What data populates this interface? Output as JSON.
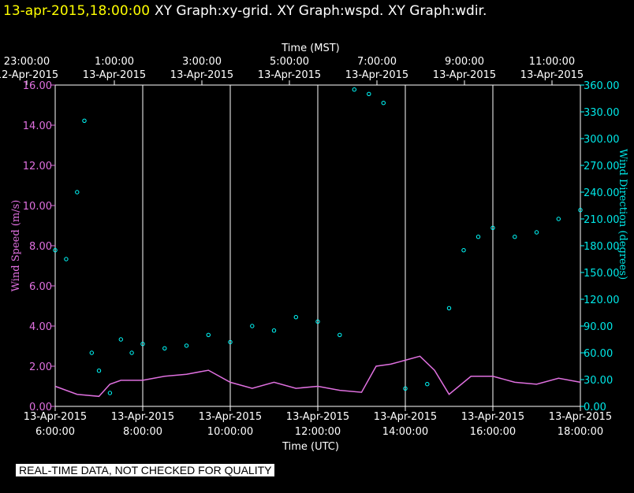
{
  "header": {
    "date": "13-apr-2015,18:00:00",
    "graphs": "XY Graph:xy-grid.  XY Graph:wspd.  XY Graph:wdir."
  },
  "footer": {
    "disclaimer": "REAL-TIME DATA, NOT CHECKED FOR QUALITY"
  },
  "colors": {
    "speed": "#e070e0",
    "direction": "#00ffff",
    "grid": "#ffffff",
    "background": "#000000",
    "title_date": "#ffff00"
  },
  "chart_data": {
    "type": "scatter",
    "top_axis": {
      "title": "Time (MST)",
      "ticks": [
        {
          "time": "23:00:00",
          "date": "12-Apr-2015"
        },
        {
          "time": "1:00:00",
          "date": "13-Apr-2015"
        },
        {
          "time": "3:00:00",
          "date": "13-Apr-2015"
        },
        {
          "time": "5:00:00",
          "date": "13-Apr-2015"
        },
        {
          "time": "7:00:00",
          "date": "13-Apr-2015"
        },
        {
          "time": "9:00:00",
          "date": "13-Apr-2015"
        },
        {
          "time": "11:00:00",
          "date": "13-Apr-2015"
        }
      ]
    },
    "bottom_axis": {
      "title": "Time (UTC)",
      "range": [
        "2015-04-13T06:00",
        "2015-04-13T18:00"
      ],
      "ticks": [
        {
          "date": "13-Apr-2015",
          "time": "6:00:00",
          "x": "2015-04-13T06:00"
        },
        {
          "date": "13-Apr-2015",
          "time": "8:00:00",
          "x": "2015-04-13T08:00"
        },
        {
          "date": "13-Apr-2015",
          "time": "10:00:00",
          "x": "2015-04-13T10:00"
        },
        {
          "date": "13-Apr-2015",
          "time": "12:00:00",
          "x": "2015-04-13T12:00"
        },
        {
          "date": "13-Apr-2015",
          "time": "14:00:00",
          "x": "2015-04-13T14:00"
        },
        {
          "date": "13-Apr-2015",
          "time": "16:00:00",
          "x": "2015-04-13T16:00"
        },
        {
          "date": "13-Apr-2015",
          "time": "18:00:00",
          "x": "2015-04-13T18:00"
        }
      ]
    },
    "left_axis": {
      "title": "Wind Speed (m/s)",
      "ylim": [
        0,
        16
      ],
      "ticks": [
        "0.00",
        "2.00",
        "4.00",
        "6.00",
        "8.00",
        "10.00",
        "12.00",
        "14.00",
        "16.00"
      ]
    },
    "right_axis": {
      "title": "Wind Direction (degrees)",
      "ylim": [
        0,
        360
      ],
      "ticks": [
        "0.00",
        "30.00",
        "60.00",
        "90.00",
        "120.00",
        "150.00",
        "180.00",
        "210.00",
        "240.00",
        "270.00",
        "300.00",
        "330.00",
        "360.00"
      ]
    },
    "grid": "vertical",
    "series": [
      {
        "style": "line",
        "axis": "left",
        "x": [
          "2015-04-13T06:00",
          "2015-04-13T06:30",
          "2015-04-13T07:00",
          "2015-04-13T07:15",
          "2015-04-13T07:30",
          "2015-04-13T08:00",
          "2015-04-13T08:30",
          "2015-04-13T09:00",
          "2015-04-13T09:30",
          "2015-04-13T10:00",
          "2015-04-13T10:30",
          "2015-04-13T11:00",
          "2015-04-13T11:30",
          "2015-04-13T12:00",
          "2015-04-13T12:30",
          "2015-04-13T13:00",
          "2015-04-13T13:20",
          "2015-04-13T13:40",
          "2015-04-13T14:00",
          "2015-04-13T14:20",
          "2015-04-13T14:40",
          "2015-04-13T15:00",
          "2015-04-13T15:30",
          "2015-04-13T16:00",
          "2015-04-13T16:30",
          "2015-04-13T17:00",
          "2015-04-13T17:30",
          "2015-04-13T18:00"
        ],
        "values": [
          1.0,
          0.6,
          0.5,
          1.1,
          1.3,
          1.3,
          1.5,
          1.6,
          1.8,
          1.2,
          0.9,
          1.2,
          0.9,
          1.0,
          0.8,
          0.7,
          2.0,
          2.1,
          2.3,
          2.5,
          1.8,
          0.6,
          1.5,
          1.5,
          1.2,
          1.1,
          1.4,
          1.2
        ]
      },
      {
        "style": "points",
        "axis": "right",
        "x": [
          "2015-04-13T06:00",
          "2015-04-13T06:15",
          "2015-04-13T06:30",
          "2015-04-13T06:40",
          "2015-04-13T06:50",
          "2015-04-13T07:00",
          "2015-04-13T07:15",
          "2015-04-13T07:30",
          "2015-04-13T07:45",
          "2015-04-13T08:00",
          "2015-04-13T08:30",
          "2015-04-13T09:00",
          "2015-04-13T09:30",
          "2015-04-13T10:00",
          "2015-04-13T10:30",
          "2015-04-13T11:00",
          "2015-04-13T11:30",
          "2015-04-13T12:00",
          "2015-04-13T12:30",
          "2015-04-13T12:50",
          "2015-04-13T13:10",
          "2015-04-13T13:30",
          "2015-04-13T14:00",
          "2015-04-13T14:30",
          "2015-04-13T15:00",
          "2015-04-13T15:20",
          "2015-04-13T15:40",
          "2015-04-13T16:00",
          "2015-04-13T16:30",
          "2015-04-13T17:00",
          "2015-04-13T17:30",
          "2015-04-13T18:00"
        ],
        "values": [
          175,
          165,
          240,
          320,
          60,
          40,
          15,
          75,
          60,
          70,
          65,
          68,
          80,
          72,
          90,
          85,
          100,
          95,
          80,
          355,
          350,
          340,
          20,
          25,
          110,
          175,
          190,
          200,
          190,
          195,
          210,
          220
        ]
      }
    ]
  }
}
